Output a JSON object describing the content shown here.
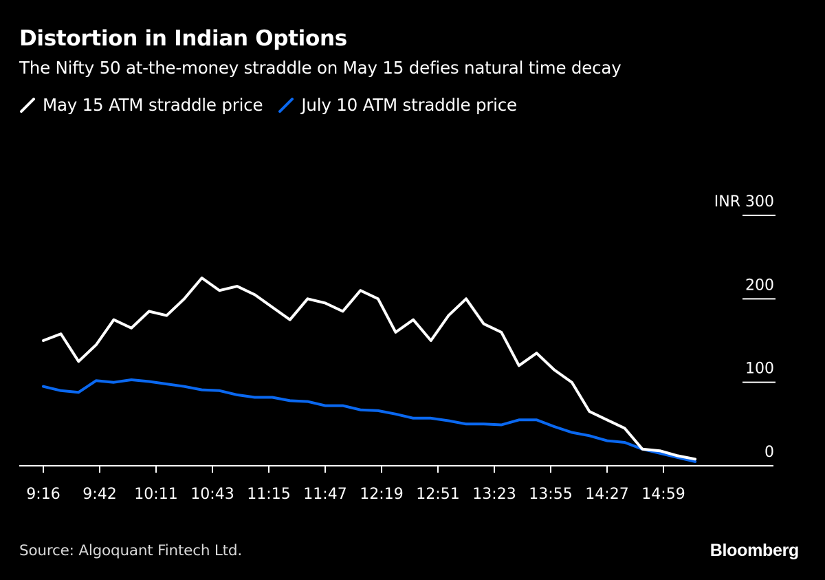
{
  "header": {
    "title": "Distortion in Indian Options",
    "subtitle": "The Nifty 50 at-the-money straddle on May 15 defies natural time decay"
  },
  "footer": {
    "source": "Source: Algoquant Fintech Ltd.",
    "brand": "Bloomberg"
  },
  "colors": {
    "background": "#000000",
    "may15": "#ffffff",
    "july10": "#0a68f0",
    "axis": "#ffffff"
  },
  "chart_data": {
    "type": "line",
    "title": "Distortion in Indian Options",
    "subtitle": "The Nifty 50 at-the-money straddle on May 15 defies natural time decay",
    "y_unit": "INR",
    "ylim": [
      0,
      300
    ],
    "y_ticks": [
      0,
      100,
      200,
      300
    ],
    "y_tick_labels": [
      "0",
      "100",
      "200",
      "INR 300"
    ],
    "y_axis_side": "right",
    "grid": false,
    "legend_position": "top-left",
    "x_tick_labels": [
      "9:16",
      "9:42",
      "10:11",
      "10:43",
      "11:15",
      "11:47",
      "12:19",
      "12:51",
      "13:23",
      "13:55",
      "14:27",
      "14:59"
    ],
    "x": [
      "9:16",
      "9:26",
      "9:36",
      "9:46",
      "9:56",
      "10:06",
      "10:16",
      "10:26",
      "10:36",
      "10:46",
      "10:56",
      "11:06",
      "11:16",
      "11:26",
      "11:36",
      "11:46",
      "11:56",
      "12:06",
      "12:16",
      "12:26",
      "12:36",
      "12:46",
      "12:56",
      "13:06",
      "13:16",
      "13:26",
      "13:36",
      "13:46",
      "13:56",
      "14:06",
      "14:16",
      "14:26",
      "14:36",
      "14:46",
      "14:56",
      "15:06",
      "15:16",
      "15:26"
    ],
    "series": [
      {
        "name": "May 15 ATM straddle price",
        "color": "#ffffff",
        "values": [
          150,
          158,
          125,
          145,
          175,
          165,
          185,
          180,
          200,
          225,
          210,
          215,
          205,
          190,
          175,
          200,
          195,
          185,
          210,
          200,
          160,
          175,
          150,
          180,
          200,
          170,
          160,
          120,
          135,
          115,
          100,
          65,
          55,
          45,
          20,
          18,
          12,
          8
        ]
      },
      {
        "name": "July 10 ATM straddle price",
        "color": "#0a68f0",
        "values": [
          95,
          90,
          88,
          102,
          100,
          103,
          101,
          98,
          95,
          91,
          90,
          85,
          82,
          82,
          78,
          77,
          72,
          72,
          67,
          66,
          62,
          57,
          57,
          54,
          50,
          50,
          49,
          55,
          55,
          47,
          40,
          36,
          30,
          28,
          20,
          15,
          10,
          5
        ]
      }
    ]
  }
}
